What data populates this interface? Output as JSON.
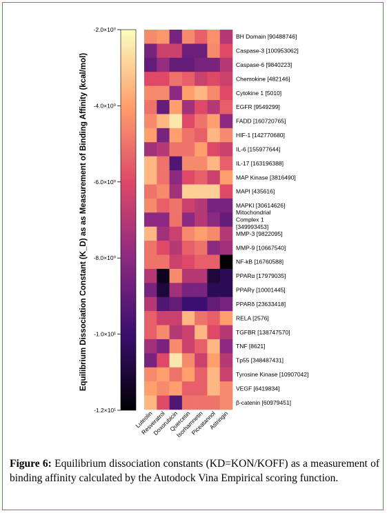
{
  "chart_data": {
    "type": "heatmap",
    "ylabel": "Equilibrium Dissociation Constant (K_D) as as Measurement of Binding Affinity (kcal/mol)",
    "colorbar_ticks": [
      "-2.0×10⁰",
      "-4.0×10⁰",
      "-6.0×10⁰",
      "-8.0×10⁰",
      "-1.0×10¹",
      "-1.2×10¹"
    ],
    "colorbar_range": [
      -12,
      -2
    ],
    "colormap": [
      "#000004",
      "#3b0f70",
      "#8c2981",
      "#de4968",
      "#fe9f6d",
      "#fcfdbf"
    ],
    "columns": [
      "Luteolin",
      "Resveratrol",
      "Doxorubicin",
      "Quercetin",
      "Isorhamnetin",
      "Piceatannol",
      "Astringin"
    ],
    "rows": [
      [
        "BH Domain [90488746]"
      ],
      [
        "Caspase-3 [100953062]"
      ],
      [
        "Caspase-6 [9840223]"
      ],
      [
        "Chemokine [482146]"
      ],
      [
        "Cytokine 1 [5010]"
      ],
      [
        "EGFR [9549299]"
      ],
      [
        "FADD [160720765]"
      ],
      [
        "HIF-1 [142770680]"
      ],
      [
        "IL-6 [155977644]"
      ],
      [
        "IL-17 [163196388]"
      ],
      [
        "MAP Kinase [3816490]"
      ],
      [
        "MAPI [435616]"
      ],
      [
        "MAPKI [30614626]"
      ],
      [
        "Mitochondrial",
        "Complex 1",
        "[349993453]"
      ],
      [
        "MMP-3 [9822095]"
      ],
      [
        "MMP-9 [10667540]"
      ],
      [
        "NF-kB [16760588]"
      ],
      [
        "PPARα [17979035]"
      ],
      [
        "PPARγ [10001445]"
      ],
      [
        "PPARδ [23633418]"
      ],
      [
        "RELA [2576]"
      ],
      [
        "TGFBR [138747570]"
      ],
      [
        "TNF [8621]"
      ],
      [
        "Tp55 [348487431]"
      ],
      [
        "Tyrosine Kinase [10907042]"
      ],
      [
        "VEGF [6419834]"
      ],
      [
        "β-catenin [60979451]"
      ]
    ],
    "values": [
      [
        -4.5,
        -4.2,
        -8.5,
        -4.5,
        -5.5,
        -4.3,
        -7.0
      ],
      [
        -8.5,
        -6.5,
        -6.5,
        -8.8,
        -8.8,
        -4.5,
        -6.0
      ],
      [
        -9.0,
        -7.8,
        -9.0,
        -9.0,
        -8.5,
        -8.5,
        -7.0
      ],
      [
        -6.0,
        -6.0,
        -5.0,
        -5.5,
        -6.5,
        -6.0,
        -6.5
      ],
      [
        -4.5,
        -4.5,
        -8.0,
        -4.0,
        -3.5,
        -4.5,
        -6.0
      ],
      [
        -5.0,
        -9.0,
        -4.0,
        -7.5,
        -6.0,
        -7.0,
        -5.5
      ],
      [
        -4.5,
        -3.5,
        -2.5,
        -6.0,
        -5.0,
        -4.0,
        -8.0
      ],
      [
        -4.0,
        -8.5,
        -4.0,
        -5.0,
        -5.5,
        -3.5,
        -4.5
      ],
      [
        -7.5,
        -7.0,
        -5.0,
        -5.0,
        -4.0,
        -6.0,
        -6.5
      ],
      [
        -3.5,
        -5.0,
        -9.5,
        -4.5,
        -4.5,
        -3.5,
        -5.5
      ],
      [
        -3.5,
        -5.0,
        -8.0,
        -6.0,
        -5.5,
        -6.5,
        -4.0
      ],
      [
        -5.0,
        -4.5,
        -7.5,
        -3.0,
        -3.0,
        -3.0,
        -6.0
      ],
      [
        -4.5,
        -5.5,
        -5.0,
        -6.5,
        -7.0,
        -8.5,
        -8.5
      ],
      [
        -8.0,
        -8.0,
        -5.0,
        -8.0,
        -7.0,
        -8.0,
        -9.0
      ],
      [
        -3.5,
        -7.5,
        -6.5,
        -4.5,
        -4.0,
        -4.5,
        -7.0
      ],
      [
        -5.0,
        -6.0,
        -7.0,
        -5.5,
        -5.0,
        -8.0,
        -7.5
      ],
      [
        -5.0,
        -5.0,
        -6.5,
        -6.0,
        -5.5,
        -5.5,
        -12.0
      ],
      [
        -7.0,
        -11.5,
        -4.5,
        -7.0,
        -7.0,
        -11.0,
        -10.5
      ],
      [
        -8.5,
        -11.0,
        -7.5,
        -8.5,
        -8.5,
        -10.5,
        -10.5
      ],
      [
        -7.0,
        -9.5,
        -9.0,
        -10.0,
        -10.0,
        -9.0,
        -8.5
      ],
      [
        -5.5,
        -6.5,
        -6.5,
        -3.5,
        -5.0,
        -5.5,
        -4.0
      ],
      [
        -5.5,
        -4.5,
        -7.0,
        -6.5,
        -3.5,
        -6.0,
        -7.0
      ],
      [
        -7.5,
        -8.5,
        -4.5,
        -6.5,
        -5.5,
        -3.5,
        -8.0
      ],
      [
        -8.5,
        -6.0,
        -2.5,
        -4.5,
        -6.5,
        -4.0,
        -7.0
      ],
      [
        -4.5,
        -4.0,
        -5.0,
        -4.0,
        -5.5,
        -3.5,
        -6.5
      ],
      [
        -4.0,
        -4.5,
        -4.0,
        -5.5,
        -5.5,
        -3.5,
        -4.5
      ],
      [
        -3.5,
        -6.0,
        -9.5,
        -5.0,
        -5.0,
        -5.0,
        -4.5
      ]
    ]
  },
  "caption": {
    "label": "Figure 6:",
    "text": " Equilibrium dissociation constants (KD=KON/KOFF) as a measurement of binding affinity calculated by the Autodock Vina Empirical scoring function."
  },
  "colors": {
    "frame_border": "#4f9a3c"
  }
}
